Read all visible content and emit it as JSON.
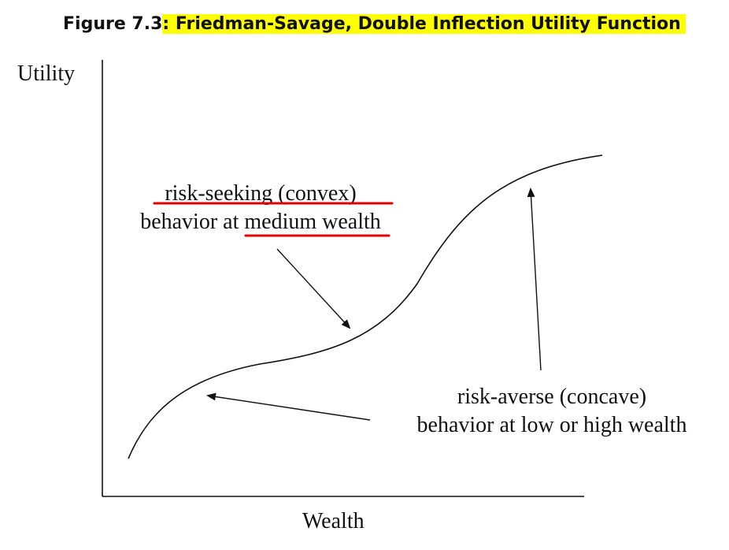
{
  "figure": {
    "title_prefix": "Figure 7.3",
    "title_highlight": ": Friedman-Savage, Double Inflection Utility Function",
    "highlight_color": "#ffff00"
  },
  "axes": {
    "y_label": "Utility",
    "x_label": "Wealth"
  },
  "annotations": {
    "risk_seeking": {
      "line1": "risk-seeking (convex)",
      "line2": "behavior at medium wealth",
      "underline_color": "#e00000"
    },
    "risk_averse": {
      "line1": "risk-averse (concave)",
      "line2": "behavior at low or high wealth"
    }
  }
}
